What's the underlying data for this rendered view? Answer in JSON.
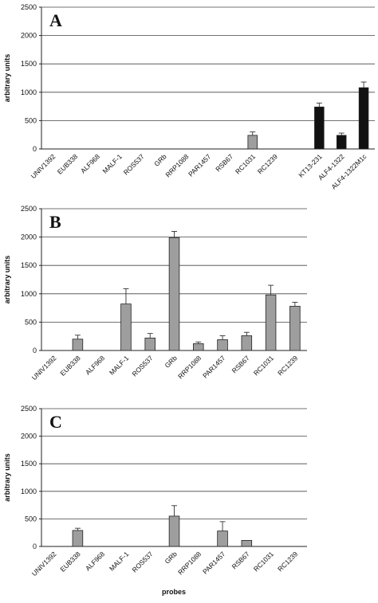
{
  "figure": {
    "xlabel": "probes"
  },
  "chart_data": [
    {
      "type": "bar",
      "panel": "A",
      "ylabel": "arbitrary units",
      "ylim": [
        0,
        2500
      ],
      "yticks": [
        0,
        500,
        1000,
        1500,
        2000,
        2500
      ],
      "grid": true,
      "categories": [
        "UNIV1392",
        "EUB338",
        "ALF968",
        "MALF-1",
        "ROS537",
        "GRb",
        "RRP1088",
        "PAR1457",
        "RSB67",
        "RC1031",
        "RC1239",
        "",
        "KT13-231",
        "ALF4-1322",
        "ALF4-1322M1c"
      ],
      "series": [
        {
          "color": "#9e9e9e",
          "values": [
            0,
            0,
            0,
            0,
            0,
            0,
            0,
            0,
            0,
            240,
            0,
            0,
            0,
            0,
            0
          ],
          "errors": [
            0,
            0,
            0,
            0,
            0,
            0,
            0,
            0,
            0,
            60,
            0,
            0,
            0,
            0,
            0
          ]
        },
        {
          "color": "#111111",
          "values": [
            0,
            0,
            0,
            0,
            0,
            0,
            0,
            0,
            0,
            0,
            0,
            0,
            740,
            240,
            1080
          ],
          "errors": [
            0,
            0,
            0,
            0,
            0,
            0,
            0,
            0,
            0,
            0,
            0,
            0,
            70,
            40,
            100
          ]
        }
      ]
    },
    {
      "type": "bar",
      "panel": "B",
      "ylabel": "arbitrary units",
      "ylim": [
        0,
        2500
      ],
      "yticks": [
        0,
        500,
        1000,
        1500,
        2000,
        2500
      ],
      "grid": true,
      "categories": [
        "UNIV1392",
        "EUB338",
        "ALF968",
        "MALF-1",
        "ROS537",
        "GRb",
        "RRP1088",
        "PAR1457",
        "RSB67",
        "RC1031",
        "RC1239"
      ],
      "series": [
        {
          "color": "#9e9e9e",
          "values": [
            0,
            200,
            0,
            820,
            220,
            1990,
            120,
            190,
            260,
            980,
            780
          ],
          "errors": [
            0,
            70,
            0,
            270,
            80,
            110,
            30,
            70,
            60,
            170,
            70
          ]
        }
      ]
    },
    {
      "type": "bar",
      "panel": "C",
      "ylabel": "arbitrary units",
      "ylim": [
        0,
        2500
      ],
      "yticks": [
        0,
        500,
        1000,
        1500,
        2000,
        2500
      ],
      "grid": true,
      "categories": [
        "UNIV1392",
        "EUB338",
        "ALF968",
        "MALF-1",
        "ROS537",
        "GRb",
        "RRP1088",
        "PAR1457",
        "RSB67",
        "RC1031",
        "RC1239"
      ],
      "series": [
        {
          "color": "#9e9e9e",
          "values": [
            0,
            290,
            0,
            0,
            0,
            550,
            0,
            280,
            110,
            0,
            0
          ],
          "errors": [
            0,
            40,
            0,
            0,
            0,
            190,
            0,
            170,
            0,
            0,
            0
          ]
        }
      ]
    }
  ]
}
